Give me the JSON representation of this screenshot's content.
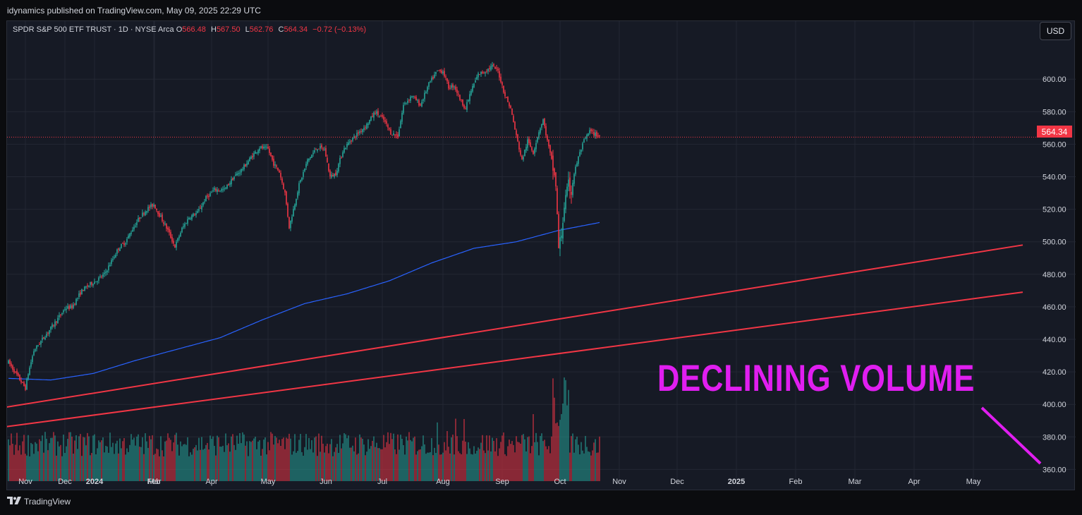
{
  "header": {
    "published": "idynamics published on TradingView.com, May 09, 2025 22:29 UTC"
  },
  "legend": {
    "symbol": "SPDR S&P 500 ETF TRUST · 1D · NYSE Arca",
    "o_label": "O",
    "o_value": "566.48",
    "h_label": "H",
    "h_value": "567.50",
    "l_label": "L",
    "l_value": "562.76",
    "c_label": "C",
    "c_value": "564.34",
    "change": "−0.72 (−0.13%)"
  },
  "currency_button": "USD",
  "last_price_tag": "564.34",
  "overlay_text": "DECLINING VOLUME",
  "footer": {
    "brand": "TradingView",
    "logo_icon": "tradingview-logo-icon"
  },
  "colors": {
    "up": "#26a69a",
    "down": "#f23645",
    "ma": "#2962ff",
    "trendline": "#f23645",
    "annotation": "#e01ef0",
    "background": "#161a25"
  },
  "chart_data": {
    "type": "candlestick",
    "symbol": "SPY",
    "timeframe": "1D",
    "y_ticks": [
      "360.00",
      "380.00",
      "400.00",
      "420.00",
      "440.00",
      "460.00",
      "480.00",
      "500.00",
      "520.00",
      "540.00",
      "560.00",
      "580.00",
      "600.00"
    ],
    "ylim": [
      358,
      627
    ],
    "x_labels": [
      {
        "label": "Nov",
        "bold": false
      },
      {
        "label": "Dec",
        "bold": false
      },
      {
        "label": "2024",
        "bold": true
      },
      {
        "label": "Feb",
        "bold": false
      },
      {
        "label": "Mar",
        "bold": false
      },
      {
        "label": "Apr",
        "bold": false
      },
      {
        "label": "May",
        "bold": false
      },
      {
        "label": "Jun",
        "bold": false
      },
      {
        "label": "Jul",
        "bold": false
      },
      {
        "label": "Aug",
        "bold": false
      },
      {
        "label": "Sep",
        "bold": false
      },
      {
        "label": "Oct",
        "bold": false
      },
      {
        "label": "Nov",
        "bold": false
      },
      {
        "label": "Dec",
        "bold": false
      },
      {
        "label": "2025",
        "bold": true
      },
      {
        "label": "Feb",
        "bold": false
      },
      {
        "label": "Mar",
        "bold": false
      },
      {
        "label": "Apr",
        "bold": false
      },
      {
        "label": "May",
        "bold": false
      }
    ],
    "x_label_index": [
      12,
      40,
      61,
      103,
      103.5,
      144,
      184,
      225,
      265,
      308,
      350,
      391,
      433,
      474,
      516,
      558,
      600,
      642,
      684
    ],
    "price_anchors": [
      [
        0,
        426
      ],
      [
        12,
        410
      ],
      [
        14,
        419
      ],
      [
        18,
        433
      ],
      [
        24,
        440
      ],
      [
        31,
        448
      ],
      [
        37,
        455
      ],
      [
        40,
        459
      ],
      [
        45,
        460
      ],
      [
        52,
        470
      ],
      [
        58,
        474
      ],
      [
        62,
        476
      ],
      [
        68,
        480
      ],
      [
        73,
        488
      ],
      [
        78,
        496
      ],
      [
        83,
        500
      ],
      [
        88,
        508
      ],
      [
        93,
        515
      ],
      [
        98,
        520
      ],
      [
        103,
        523
      ],
      [
        108,
        515
      ],
      [
        113,
        507
      ],
      [
        118,
        497
      ],
      [
        123,
        508
      ],
      [
        128,
        515
      ],
      [
        134,
        518
      ],
      [
        140,
        527
      ],
      [
        146,
        532
      ],
      [
        153,
        532
      ],
      [
        160,
        540
      ],
      [
        166,
        545
      ],
      [
        172,
        552
      ],
      [
        178,
        558
      ],
      [
        184,
        557
      ],
      [
        188,
        548
      ],
      [
        192,
        543
      ],
      [
        196,
        530
      ],
      [
        199,
        509
      ],
      [
        202,
        520
      ],
      [
        206,
        535
      ],
      [
        212,
        550
      ],
      [
        219,
        558
      ],
      [
        224,
        557
      ],
      [
        228,
        540
      ],
      [
        232,
        542
      ],
      [
        237,
        556
      ],
      [
        242,
        562
      ],
      [
        248,
        567
      ],
      [
        254,
        572
      ],
      [
        260,
        580
      ],
      [
        266,
        575
      ],
      [
        271,
        567
      ],
      [
        276,
        565
      ],
      [
        280,
        584
      ],
      [
        286,
        590
      ],
      [
        292,
        584
      ],
      [
        298,
        597
      ],
      [
        304,
        605
      ],
      [
        308,
        605
      ],
      [
        312,
        595
      ],
      [
        316,
        596
      ],
      [
        320,
        588
      ],
      [
        324,
        582
      ],
      [
        328,
        593
      ],
      [
        333,
        603
      ],
      [
        338,
        605
      ],
      [
        343,
        608
      ],
      [
        347,
        605
      ],
      [
        352,
        590
      ],
      [
        356,
        582
      ],
      [
        360,
        565
      ],
      [
        364,
        550
      ],
      [
        368,
        562
      ],
      [
        372,
        555
      ],
      [
        376,
        568
      ],
      [
        379,
        575
      ],
      [
        382,
        562
      ],
      [
        385,
        550
      ],
      [
        388,
        535
      ],
      [
        390,
        496
      ],
      [
        392,
        505
      ],
      [
        394,
        522
      ],
      [
        397,
        535
      ],
      [
        399,
        531
      ],
      [
        401,
        542
      ],
      [
        404,
        552
      ],
      [
        408,
        562
      ],
      [
        412,
        568
      ],
      [
        416,
        566
      ],
      [
        419,
        565
      ]
    ],
    "ma_anchors": [
      [
        0,
        416
      ],
      [
        30,
        415
      ],
      [
        60,
        419
      ],
      [
        90,
        427
      ],
      [
        120,
        434
      ],
      [
        150,
        441
      ],
      [
        180,
        452
      ],
      [
        210,
        462
      ],
      [
        240,
        468
      ],
      [
        270,
        476
      ],
      [
        300,
        487
      ],
      [
        330,
        496
      ],
      [
        360,
        500
      ],
      [
        390,
        507
      ],
      [
        420,
        512
      ],
      [
        450,
        517
      ],
      [
        480,
        524
      ],
      [
        510,
        532
      ],
      [
        540,
        537
      ],
      [
        570,
        546
      ],
      [
        600,
        553
      ],
      [
        630,
        558
      ],
      [
        660,
        564
      ],
      [
        675,
        565
      ],
      [
        690,
        565
      ],
      [
        700,
        563
      ],
      [
        710,
        562
      ],
      [
        719,
        560
      ]
    ],
    "trendlines": [
      {
        "x": [
          -4,
          719
        ],
        "y": [
          398,
          498
        ]
      },
      {
        "x": [
          -4,
          719
        ],
        "y": [
          386,
          469
        ]
      }
    ],
    "volume_note": "Daily volume bars colored by candle direction; spike in early Apr 2025 then decline",
    "volume_max_label": "no axis"
  }
}
